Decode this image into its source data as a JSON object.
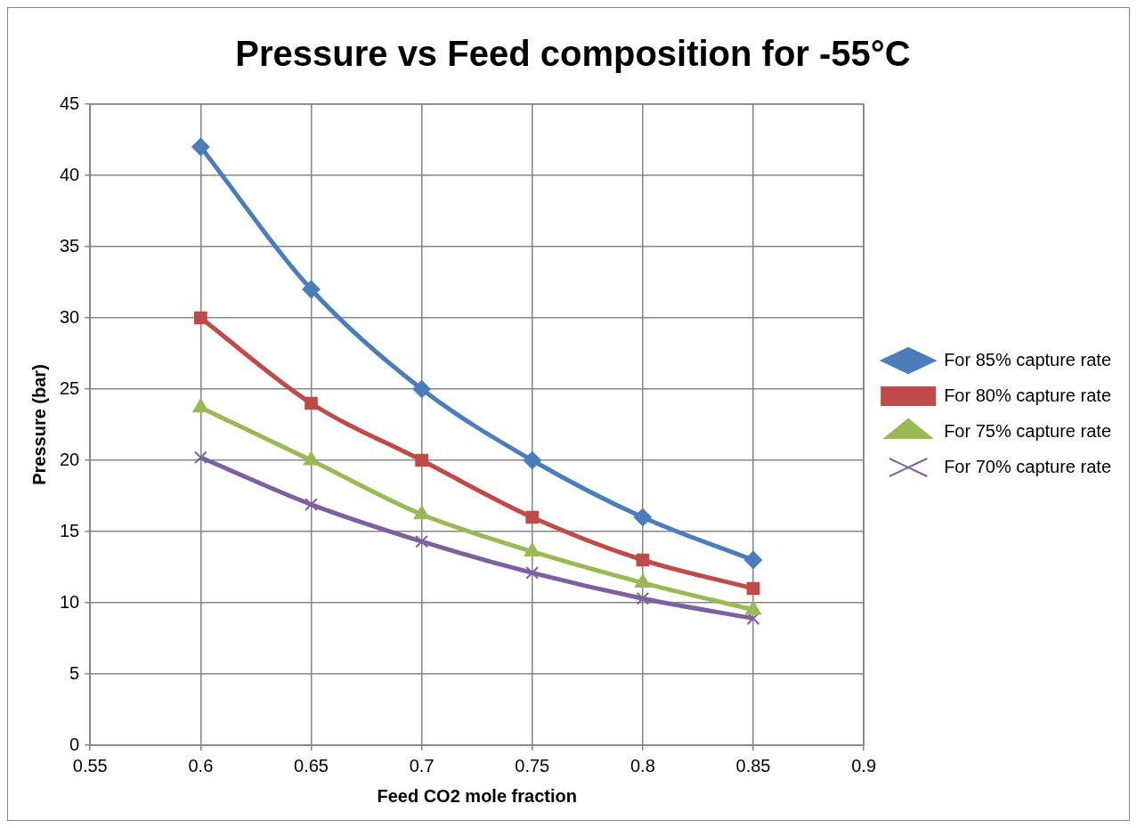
{
  "chart_data": {
    "type": "line",
    "title": "Pressure vs Feed composition for -55°C",
    "xlabel": "Feed CO2 mole fraction",
    "ylabel": "Pressure (bar)",
    "x": [
      0.6,
      0.65,
      0.7,
      0.75,
      0.8,
      0.85
    ],
    "series": [
      {
        "name": "For 85% capture rate",
        "color": "#4a7ebb",
        "marker": "diamond",
        "values": [
          42,
          32,
          25,
          20,
          16,
          13
        ]
      },
      {
        "name": "For 80% capture rate",
        "color": "#be4b48",
        "marker": "square",
        "values": [
          30,
          24,
          20,
          16,
          13,
          11
        ]
      },
      {
        "name": "For 75% capture rate",
        "color": "#98b954",
        "marker": "triangle",
        "values": [
          23.7,
          20,
          16.2,
          13.6,
          11.4,
          9.5
        ]
      },
      {
        "name": "For 70% capture rate",
        "color": "#7d60a0",
        "marker": "cross",
        "values": [
          20.2,
          16.9,
          14.3,
          12.1,
          10.3,
          8.9
        ]
      }
    ],
    "xlim": [
      0.55,
      0.9
    ],
    "xticks": [
      0.55,
      0.6,
      0.65,
      0.7,
      0.75,
      0.8,
      0.85,
      0.9
    ],
    "ylim": [
      0,
      45
    ],
    "yticks": [
      0,
      5,
      10,
      15,
      20,
      25,
      30,
      35,
      40,
      45
    ],
    "grid": true,
    "legend": "right",
    "line_style": "solid"
  }
}
